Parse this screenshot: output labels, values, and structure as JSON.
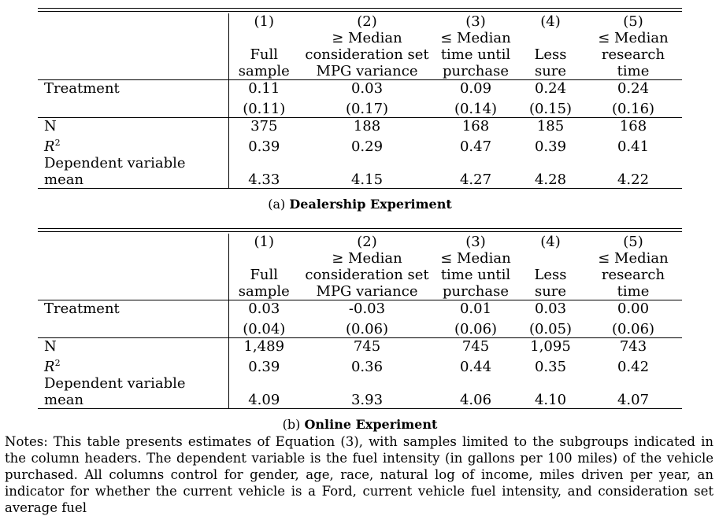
{
  "columns": [
    {
      "num": "(1)",
      "line1": "",
      "line2": "Full",
      "line3": "sample"
    },
    {
      "num": "(2)",
      "line1": "≥ Median",
      "line2": "consideration set",
      "line3": "MPG variance"
    },
    {
      "num": "(3)",
      "line1": "≤ Median",
      "line2": "time until",
      "line3": "purchase"
    },
    {
      "num": "(4)",
      "line1": "",
      "line2": "Less",
      "line3": "sure"
    },
    {
      "num": "(5)",
      "line1": "≤ Median",
      "line2": "research",
      "line3": "time"
    }
  ],
  "row_labels": {
    "treatment": "Treatment",
    "n": "N",
    "r2_base": "R",
    "r2_sup": "2",
    "depmean": "Dependent variable mean"
  },
  "panels": [
    {
      "caption_prefix": "(a)",
      "caption_title": "Dealership Experiment",
      "treatment": [
        "0.11",
        "0.03",
        "0.09",
        "0.24",
        "0.24"
      ],
      "se": [
        "(0.11)",
        "(0.17)",
        "(0.14)",
        "(0.15)",
        "(0.16)"
      ],
      "n": [
        "375",
        "188",
        "168",
        "185",
        "168"
      ],
      "r2": [
        "0.39",
        "0.29",
        "0.47",
        "0.39",
        "0.41"
      ],
      "depmean": [
        "4.33",
        "4.15",
        "4.27",
        "4.28",
        "4.22"
      ]
    },
    {
      "caption_prefix": "(b)",
      "caption_title": "Online Experiment",
      "treatment": [
        "0.03",
        "-0.03",
        "0.01",
        "0.03",
        "0.00"
      ],
      "se": [
        "(0.04)",
        "(0.06)",
        "(0.06)",
        "(0.05)",
        "(0.06)"
      ],
      "n": [
        "1,489",
        "745",
        "745",
        "1,095",
        "743"
      ],
      "r2": [
        "0.39",
        "0.36",
        "0.44",
        "0.35",
        "0.42"
      ],
      "depmean": [
        "4.09",
        "3.93",
        "4.06",
        "4.10",
        "4.07"
      ]
    }
  ],
  "notes": "Notes: This table presents estimates of Equation (3), with samples limited to the subgroups indicated in the column headers. The dependent variable is the fuel intensity (in gallons per 100 miles) of the vehicle purchased. All columns control for gender, age, race, natural log of income, miles driven per year, an indicator for whether the current vehicle is a Ford, current vehicle fuel intensity, and consideration set average fuel"
}
